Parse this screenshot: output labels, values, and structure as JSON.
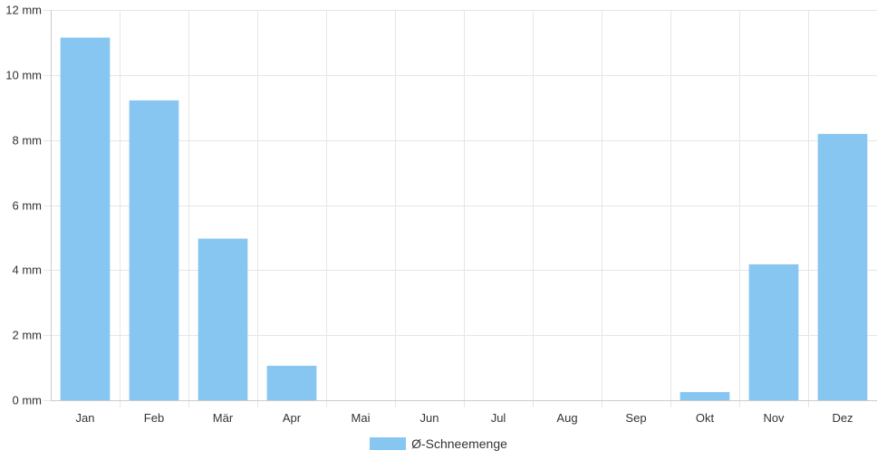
{
  "chart_data": {
    "type": "bar",
    "categories": [
      "Jan",
      "Feb",
      "Mär",
      "Apr",
      "Mai",
      "Jun",
      "Jul",
      "Aug",
      "Sep",
      "Okt",
      "Nov",
      "Dez"
    ],
    "series": [
      {
        "name": "Ø-Schneemenge",
        "color": "#88c6f2",
        "values": [
          11.15,
          9.22,
          4.97,
          1.06,
          0,
          0,
          0,
          0,
          0,
          0.25,
          4.18,
          8.19
        ]
      }
    ],
    "y_ticks": [
      "0 mm",
      "2 mm",
      "4 mm",
      "6 mm",
      "8 mm",
      "10 mm",
      "12 mm"
    ],
    "ylim": [
      0,
      12
    ],
    "grid": true,
    "legend_position": "bottom"
  }
}
